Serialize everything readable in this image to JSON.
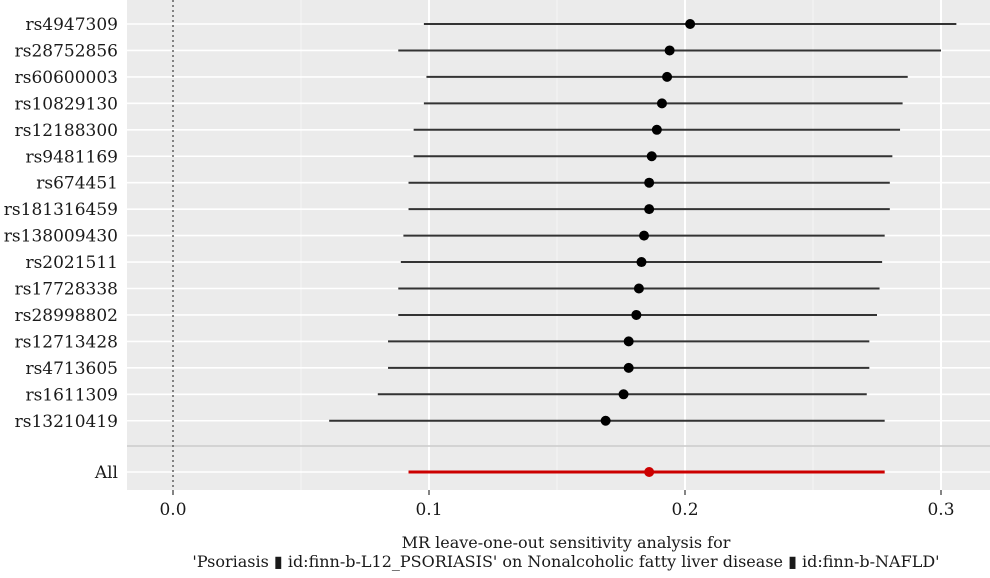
{
  "chart_data": {
    "type": "scatter",
    "title": "",
    "xlabel_lines": [
      "MR leave-one-out sensitivity analysis for",
      "'Psoriasis ▮ id:finn-b-L12_PSORIASIS' on Nonalcoholic fatty liver disease ▮ id:finn-b-NAFLD'"
    ],
    "ylabel": "",
    "xlim": [
      -0.06,
      0.315
    ],
    "x_ticks": [
      {
        "value": 0.0,
        "label": "0.0"
      },
      {
        "value": 0.1,
        "label": "0.1"
      },
      {
        "value": 0.2,
        "label": "0.2"
      },
      {
        "value": 0.3,
        "label": "0.3"
      }
    ],
    "reference_line_x": 0.0,
    "grid": true,
    "points": [
      {
        "label": "rs4947309",
        "estimate": 0.202,
        "lower": 0.098,
        "upper": 0.306
      },
      {
        "label": "rs28752856",
        "estimate": 0.194,
        "lower": 0.088,
        "upper": 0.3
      },
      {
        "label": "rs60600003",
        "estimate": 0.193,
        "lower": 0.099,
        "upper": 0.287
      },
      {
        "label": "rs10829130",
        "estimate": 0.191,
        "lower": 0.098,
        "upper": 0.285
      },
      {
        "label": "rs12188300",
        "estimate": 0.189,
        "lower": 0.094,
        "upper": 0.284
      },
      {
        "label": "rs9481169",
        "estimate": 0.187,
        "lower": 0.094,
        "upper": 0.281
      },
      {
        "label": "rs674451",
        "estimate": 0.186,
        "lower": 0.092,
        "upper": 0.28
      },
      {
        "label": "rs181316459",
        "estimate": 0.186,
        "lower": 0.092,
        "upper": 0.28
      },
      {
        "label": "rs138009430",
        "estimate": 0.184,
        "lower": 0.09,
        "upper": 0.278
      },
      {
        "label": "rs2021511",
        "estimate": 0.183,
        "lower": 0.089,
        "upper": 0.277
      },
      {
        "label": "rs17728338",
        "estimate": 0.182,
        "lower": 0.088,
        "upper": 0.276
      },
      {
        "label": "rs28998802",
        "estimate": 0.181,
        "lower": 0.088,
        "upper": 0.275
      },
      {
        "label": "rs12713428",
        "estimate": 0.178,
        "lower": 0.084,
        "upper": 0.272
      },
      {
        "label": "rs4713605",
        "estimate": 0.178,
        "lower": 0.084,
        "upper": 0.272
      },
      {
        "label": "rs1611309",
        "estimate": 0.176,
        "lower": 0.08,
        "upper": 0.271
      },
      {
        "label": "rs13210419",
        "estimate": 0.169,
        "lower": 0.061,
        "upper": 0.278
      }
    ],
    "overall": {
      "label": "All",
      "estimate": 0.186,
      "lower": 0.092,
      "upper": 0.278
    },
    "colors": {
      "panel_background": "#ebebeb",
      "grid": "#ffffff",
      "point": "#000000",
      "overall": "#cc0000",
      "ref_line": "#555555",
      "separator": "#c8c8c8"
    }
  }
}
